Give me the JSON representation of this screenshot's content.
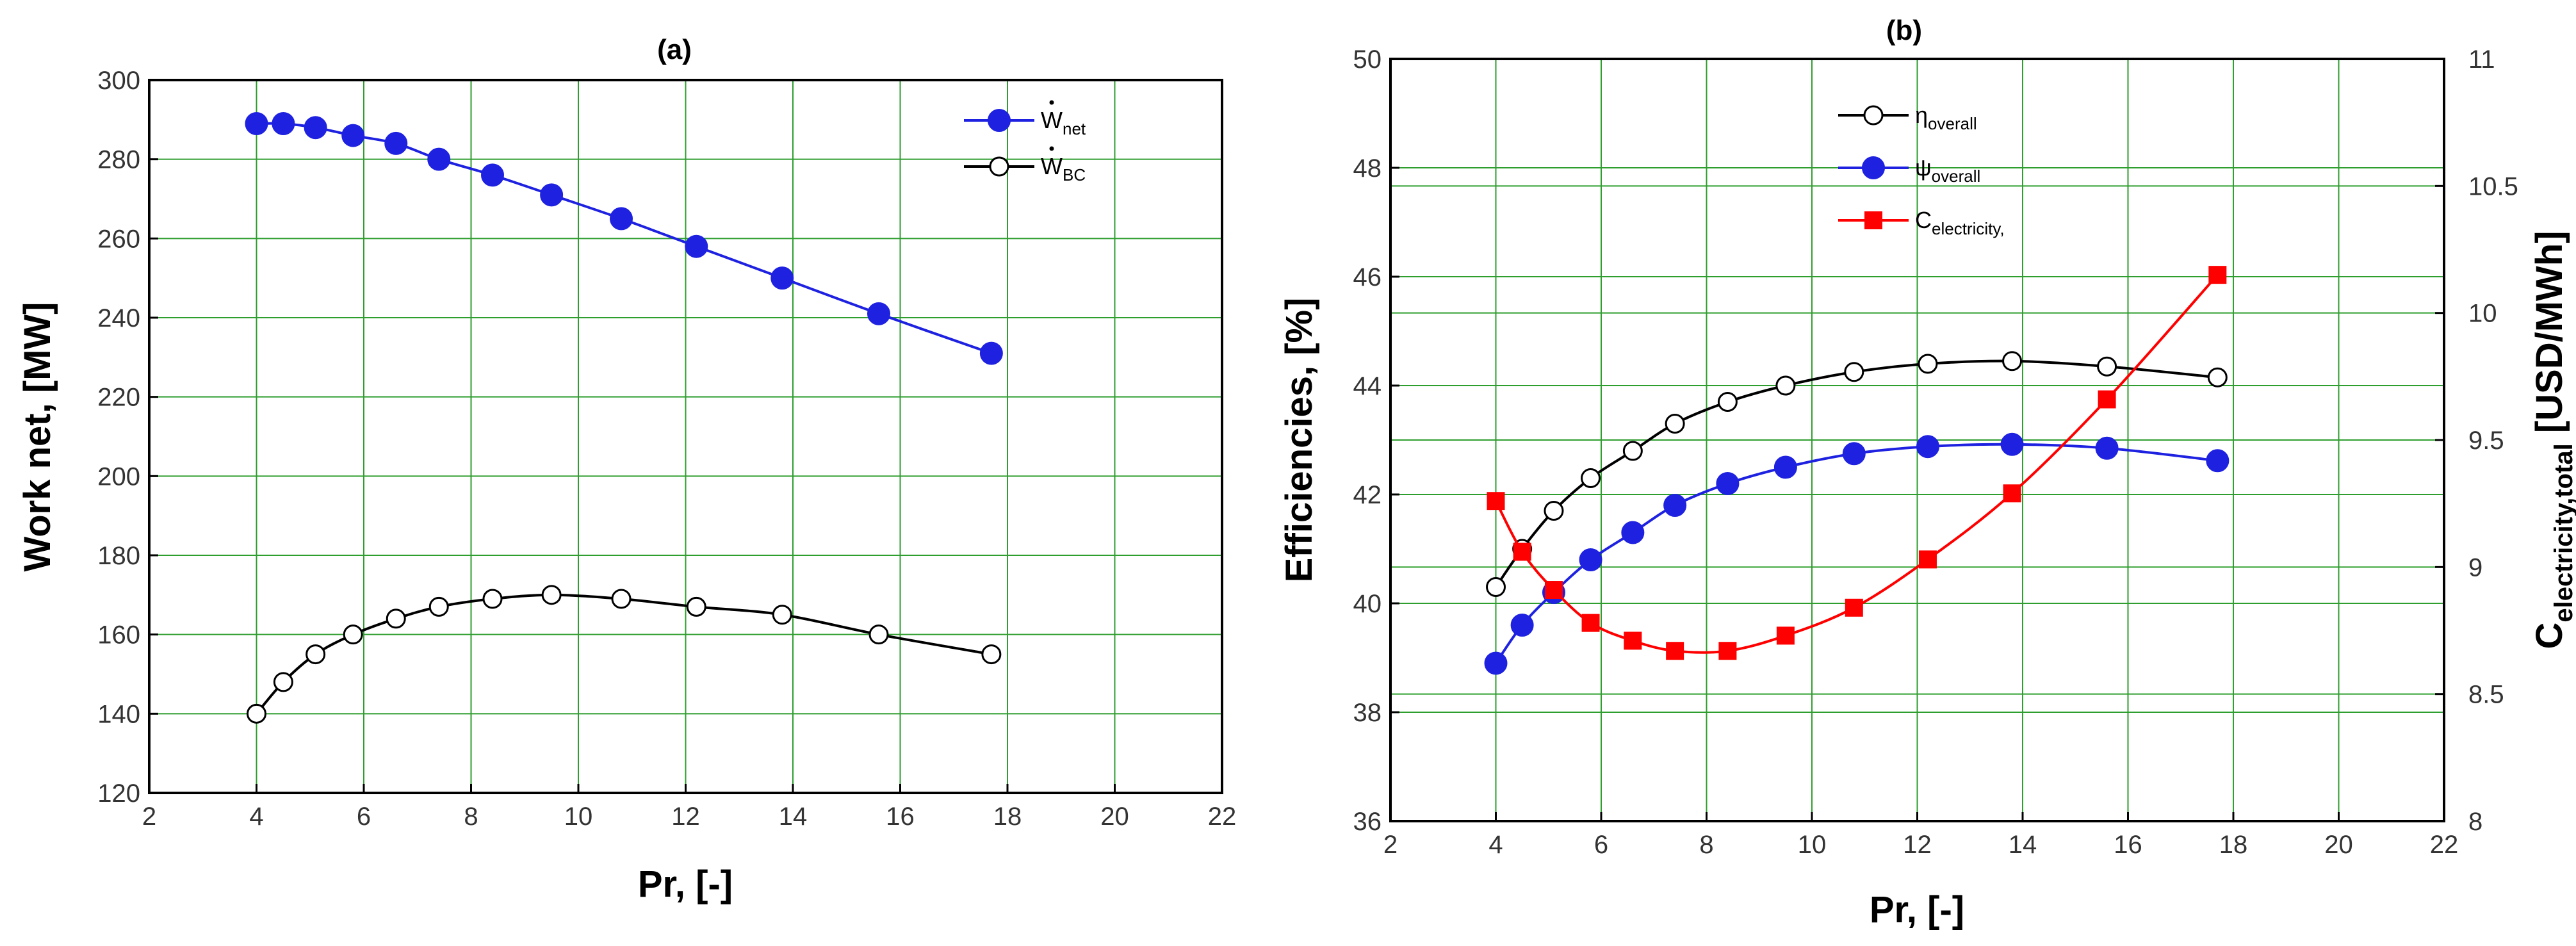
{
  "chart_data": [
    {
      "id": "a",
      "type": "line",
      "title": "(a)",
      "xlabel": "Pr, [-]",
      "ylabel": "Work net, [MW]",
      "xlim": [
        2,
        22
      ],
      "ylim": [
        120,
        300
      ],
      "xticks": [
        2,
        4,
        6,
        8,
        10,
        12,
        14,
        16,
        18,
        20,
        22
      ],
      "yticks": [
        120,
        140,
        160,
        180,
        200,
        220,
        240,
        260,
        280,
        300
      ],
      "grid": true,
      "legend_position": "top-right",
      "x": [
        4,
        4.5,
        5.1,
        5.8,
        6.6,
        7.4,
        8.4,
        9.5,
        10.8,
        12.2,
        13.8,
        15.6,
        17.7
      ],
      "series": [
        {
          "key": "wnet",
          "name": "W",
          "sub": "net",
          "color": "#1e22e0",
          "marker": "filled-circle",
          "axis": "left",
          "values": [
            289,
            289,
            288,
            286,
            284,
            280,
            276,
            271,
            265,
            258,
            250,
            241,
            231
          ]
        },
        {
          "key": "wbc",
          "name": "W",
          "sub": "BC",
          "color": "#000000",
          "marker": "open-circle",
          "axis": "left",
          "values": [
            140,
            148,
            155,
            160,
            164,
            167,
            169,
            170,
            169,
            167,
            165,
            160,
            155
          ]
        }
      ]
    },
    {
      "id": "b",
      "type": "line",
      "title": "(b)",
      "xlabel": "Pr, [-]",
      "ylabel": "Efficiencies, [%]",
      "y2label_main": "C",
      "y2label_sub": "electricity,total",
      "y2label_tail": " [USD/MWh]",
      "xlim": [
        2,
        22
      ],
      "ylim": [
        36,
        50
      ],
      "y2lim": [
        8,
        11
      ],
      "xticks": [
        2,
        4,
        6,
        8,
        10,
        12,
        14,
        16,
        18,
        20,
        22
      ],
      "yticks": [
        36,
        38,
        40,
        42,
        44,
        46,
        48,
        50
      ],
      "y2ticks": [
        "8",
        "8.5",
        "9",
        "9.5",
        "10",
        "10.5",
        "11"
      ],
      "grid": true,
      "legend_position": "top-center",
      "x": [
        4,
        4.5,
        5.1,
        5.8,
        6.6,
        7.4,
        8.4,
        9.5,
        10.8,
        12.2,
        13.8,
        15.6,
        17.7
      ],
      "series": [
        {
          "key": "eta",
          "name": "η",
          "sub": "overall",
          "color": "#000000",
          "marker": "open-circle",
          "axis": "left",
          "values": [
            40.3,
            41.0,
            41.7,
            42.3,
            42.8,
            43.3,
            43.7,
            44.0,
            44.25,
            44.4,
            44.45,
            44.35,
            44.15
          ]
        },
        {
          "key": "psi",
          "name": "ψ",
          "sub": "overall",
          "color": "#1e22e0",
          "marker": "filled-circle",
          "axis": "left",
          "values": [
            38.9,
            39.6,
            40.2,
            40.8,
            41.3,
            41.8,
            42.2,
            42.5,
            42.75,
            42.88,
            42.92,
            42.85,
            42.62
          ]
        },
        {
          "key": "cel",
          "name": "C",
          "sub": "electricity,",
          "color": "#ff0000",
          "marker": "filled-square",
          "axis": "right",
          "values": [
            9.26,
            9.06,
            8.91,
            8.78,
            8.71,
            8.67,
            8.67,
            8.73,
            8.84,
            9.03,
            9.29,
            9.66,
            10.15
          ]
        }
      ]
    }
  ]
}
